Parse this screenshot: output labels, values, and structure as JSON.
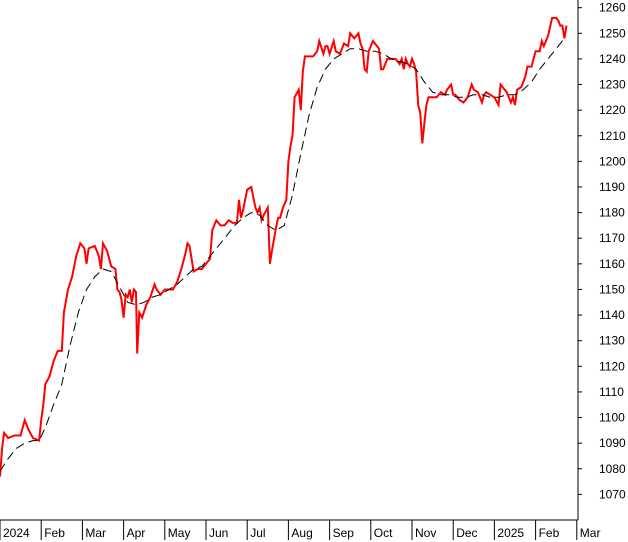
{
  "chart_data": {
    "type": "line",
    "title": "",
    "xlabel": "",
    "ylabel": "",
    "ylim": [
      1060,
      1263
    ],
    "grid": false,
    "legend": "none",
    "x_ticks": [
      {
        "label": "2024",
        "x": 0
      },
      {
        "label": "Feb",
        "x": 1.0
      },
      {
        "label": "Mar",
        "x": 2.0
      },
      {
        "label": "Apr",
        "x": 3.0
      },
      {
        "label": "May",
        "x": 4.0
      },
      {
        "label": "Jun",
        "x": 5.0
      },
      {
        "label": "Jul",
        "x": 6.0
      },
      {
        "label": "Aug",
        "x": 7.0
      },
      {
        "label": "Sep",
        "x": 8.0
      },
      {
        "label": "Oct",
        "x": 9.0
      },
      {
        "label": "Nov",
        "x": 10.0
      },
      {
        "label": "Dec",
        "x": 11.0
      },
      {
        "label": "2025",
        "x": 12.0
      },
      {
        "label": "Feb",
        "x": 13.0
      },
      {
        "label": "Mar",
        "x": 14.0
      }
    ],
    "y_ticks": [
      1070,
      1080,
      1090,
      1100,
      1110,
      1120,
      1130,
      1140,
      1150,
      1160,
      1170,
      1180,
      1190,
      1200,
      1210,
      1220,
      1230,
      1240,
      1250,
      1260
    ],
    "series": [
      {
        "style": "solid",
        "color": "#ff0000",
        "points": [
          [
            0.0,
            1077
          ],
          [
            0.05,
            1088
          ],
          [
            0.1,
            1094
          ],
          [
            0.2,
            1092
          ],
          [
            0.35,
            1093
          ],
          [
            0.5,
            1093
          ],
          [
            0.6,
            1099
          ],
          [
            0.7,
            1095
          ],
          [
            0.8,
            1092
          ],
          [
            0.95,
            1091
          ],
          [
            1.0,
            1099
          ],
          [
            1.05,
            1105
          ],
          [
            1.1,
            1113
          ],
          [
            1.2,
            1116
          ],
          [
            1.3,
            1122
          ],
          [
            1.4,
            1126
          ],
          [
            1.5,
            1126
          ],
          [
            1.55,
            1141
          ],
          [
            1.65,
            1150
          ],
          [
            1.75,
            1155
          ],
          [
            1.85,
            1163
          ],
          [
            1.95,
            1168
          ],
          [
            2.05,
            1166
          ],
          [
            2.1,
            1160
          ],
          [
            2.15,
            1166
          ],
          [
            2.3,
            1167
          ],
          [
            2.4,
            1163
          ],
          [
            2.45,
            1158
          ],
          [
            2.5,
            1168
          ],
          [
            2.6,
            1165
          ],
          [
            2.7,
            1159
          ],
          [
            2.8,
            1158
          ],
          [
            2.85,
            1150
          ],
          [
            2.9,
            1149
          ],
          [
            2.95,
            1146
          ],
          [
            3.0,
            1139
          ],
          [
            3.05,
            1148
          ],
          [
            3.1,
            1147
          ],
          [
            3.15,
            1150
          ],
          [
            3.2,
            1145
          ],
          [
            3.25,
            1150
          ],
          [
            3.3,
            1149
          ],
          [
            3.33,
            1125
          ],
          [
            3.38,
            1141
          ],
          [
            3.45,
            1139
          ],
          [
            3.55,
            1144
          ],
          [
            3.65,
            1147
          ],
          [
            3.75,
            1152
          ],
          [
            3.8,
            1150
          ],
          [
            3.9,
            1148
          ],
          [
            4.0,
            1150
          ],
          [
            4.1,
            1150
          ],
          [
            4.2,
            1150
          ],
          [
            4.3,
            1153
          ],
          [
            4.4,
            1158
          ],
          [
            4.5,
            1164
          ],
          [
            4.55,
            1168
          ],
          [
            4.6,
            1167
          ],
          [
            4.65,
            1162
          ],
          [
            4.7,
            1157
          ],
          [
            4.8,
            1158
          ],
          [
            4.9,
            1158
          ],
          [
            5.0,
            1160
          ],
          [
            5.1,
            1162
          ],
          [
            5.15,
            1173
          ],
          [
            5.25,
            1177
          ],
          [
            5.35,
            1175
          ],
          [
            5.45,
            1175
          ],
          [
            5.55,
            1177
          ],
          [
            5.65,
            1176
          ],
          [
            5.75,
            1176
          ],
          [
            5.8,
            1185
          ],
          [
            5.85,
            1178
          ],
          [
            5.9,
            1181
          ],
          [
            6.0,
            1189
          ],
          [
            6.1,
            1190
          ],
          [
            6.2,
            1182
          ],
          [
            6.25,
            1180
          ],
          [
            6.3,
            1182
          ],
          [
            6.35,
            1177
          ],
          [
            6.4,
            1179
          ],
          [
            6.5,
            1182
          ],
          [
            6.55,
            1160
          ],
          [
            6.6,
            1165
          ],
          [
            6.7,
            1174
          ],
          [
            6.75,
            1178
          ],
          [
            6.8,
            1178
          ],
          [
            6.87,
            1182
          ],
          [
            6.95,
            1185
          ],
          [
            7.0,
            1200
          ],
          [
            7.05,
            1206
          ],
          [
            7.1,
            1210
          ],
          [
            7.15,
            1225
          ],
          [
            7.25,
            1228
          ],
          [
            7.3,
            1220
          ],
          [
            7.35,
            1235
          ],
          [
            7.4,
            1241
          ],
          [
            7.5,
            1241
          ],
          [
            7.6,
            1241
          ],
          [
            7.7,
            1243
          ],
          [
            7.75,
            1247
          ],
          [
            7.85,
            1242
          ],
          [
            7.9,
            1245
          ],
          [
            7.95,
            1245
          ],
          [
            8.0,
            1242
          ],
          [
            8.1,
            1247
          ],
          [
            8.15,
            1243
          ],
          [
            8.25,
            1242
          ],
          [
            8.35,
            1246
          ],
          [
            8.45,
            1245
          ],
          [
            8.5,
            1250
          ],
          [
            8.6,
            1248
          ],
          [
            8.7,
            1250
          ],
          [
            8.75,
            1246
          ],
          [
            8.8,
            1244
          ],
          [
            8.85,
            1236
          ],
          [
            8.9,
            1235
          ],
          [
            8.95,
            1243
          ],
          [
            9.0,
            1245
          ],
          [
            9.05,
            1247
          ],
          [
            9.1,
            1246
          ],
          [
            9.15,
            1245
          ],
          [
            9.2,
            1244
          ],
          [
            9.25,
            1236
          ],
          [
            9.3,
            1236
          ],
          [
            9.4,
            1240
          ],
          [
            9.5,
            1240
          ],
          [
            9.6,
            1240
          ],
          [
            9.7,
            1238
          ],
          [
            9.75,
            1240
          ],
          [
            9.8,
            1236
          ],
          [
            9.85,
            1240
          ],
          [
            9.9,
            1238
          ],
          [
            9.95,
            1237
          ],
          [
            10.0,
            1240
          ],
          [
            10.05,
            1238
          ],
          [
            10.1,
            1235
          ],
          [
            10.15,
            1222
          ],
          [
            10.2,
            1219
          ],
          [
            10.25,
            1207
          ],
          [
            10.3,
            1215
          ],
          [
            10.35,
            1222
          ],
          [
            10.4,
            1225
          ],
          [
            10.5,
            1225
          ],
          [
            10.6,
            1225
          ],
          [
            10.7,
            1227
          ],
          [
            10.8,
            1226
          ],
          [
            10.85,
            1228
          ],
          [
            10.95,
            1230
          ],
          [
            11.0,
            1226
          ],
          [
            11.05,
            1226
          ],
          [
            11.15,
            1224
          ],
          [
            11.25,
            1223
          ],
          [
            11.35,
            1225
          ],
          [
            11.45,
            1230
          ],
          [
            11.5,
            1228
          ],
          [
            11.6,
            1227
          ],
          [
            11.7,
            1223
          ],
          [
            11.75,
            1226
          ],
          [
            11.8,
            1227
          ],
          [
            11.9,
            1226
          ],
          [
            12.0,
            1225
          ],
          [
            12.1,
            1222
          ],
          [
            12.15,
            1230
          ],
          [
            12.2,
            1229
          ],
          [
            12.3,
            1227
          ],
          [
            12.4,
            1223
          ],
          [
            12.45,
            1225
          ],
          [
            12.5,
            1222
          ],
          [
            12.55,
            1228
          ],
          [
            12.65,
            1229
          ],
          [
            12.75,
            1233
          ],
          [
            12.8,
            1237
          ],
          [
            12.9,
            1237
          ],
          [
            12.95,
            1240
          ],
          [
            13.0,
            1243
          ],
          [
            13.1,
            1243
          ],
          [
            13.15,
            1247
          ],
          [
            13.2,
            1245
          ],
          [
            13.3,
            1249
          ],
          [
            13.4,
            1256
          ],
          [
            13.5,
            1256
          ],
          [
            13.55,
            1255
          ],
          [
            13.6,
            1253
          ],
          [
            13.65,
            1253
          ],
          [
            13.7,
            1248
          ],
          [
            13.75,
            1253
          ]
        ]
      },
      {
        "style": "dashed",
        "color": "#000000",
        "points": [
          [
            0.0,
            1079
          ],
          [
            0.2,
            1084
          ],
          [
            0.4,
            1088
          ],
          [
            0.6,
            1090
          ],
          [
            0.8,
            1091
          ],
          [
            0.95,
            1091
          ],
          [
            1.1,
            1096
          ],
          [
            1.3,
            1105
          ],
          [
            1.5,
            1113
          ],
          [
            1.7,
            1128
          ],
          [
            1.9,
            1141
          ],
          [
            2.1,
            1150
          ],
          [
            2.3,
            1155
          ],
          [
            2.5,
            1158
          ],
          [
            2.7,
            1157
          ],
          [
            2.9,
            1151
          ],
          [
            3.1,
            1145
          ],
          [
            3.3,
            1144
          ],
          [
            3.5,
            1145
          ],
          [
            3.7,
            1147
          ],
          [
            3.9,
            1148
          ],
          [
            4.1,
            1150
          ],
          [
            4.3,
            1152
          ],
          [
            4.5,
            1155
          ],
          [
            4.7,
            1158
          ],
          [
            4.9,
            1159
          ],
          [
            5.1,
            1163
          ],
          [
            5.3,
            1167
          ],
          [
            5.5,
            1171
          ],
          [
            5.7,
            1175
          ],
          [
            5.9,
            1178
          ],
          [
            6.1,
            1180
          ],
          [
            6.3,
            1179
          ],
          [
            6.5,
            1175
          ],
          [
            6.7,
            1173
          ],
          [
            6.9,
            1175
          ],
          [
            7.1,
            1187
          ],
          [
            7.3,
            1203
          ],
          [
            7.5,
            1218
          ],
          [
            7.7,
            1229
          ],
          [
            7.9,
            1236
          ],
          [
            8.1,
            1240
          ],
          [
            8.3,
            1242
          ],
          [
            8.5,
            1244
          ],
          [
            8.7,
            1244
          ],
          [
            8.9,
            1243
          ],
          [
            9.1,
            1243
          ],
          [
            9.3,
            1242
          ],
          [
            9.5,
            1240
          ],
          [
            9.7,
            1239
          ],
          [
            9.9,
            1238
          ],
          [
            10.1,
            1236
          ],
          [
            10.3,
            1231
          ],
          [
            10.5,
            1227
          ],
          [
            10.7,
            1226
          ],
          [
            10.9,
            1226
          ],
          [
            11.1,
            1225
          ],
          [
            11.3,
            1225
          ],
          [
            11.5,
            1226
          ],
          [
            11.7,
            1226
          ],
          [
            11.9,
            1225
          ],
          [
            12.1,
            1225
          ],
          [
            12.3,
            1226
          ],
          [
            12.5,
            1226
          ],
          [
            12.7,
            1228
          ],
          [
            12.9,
            1231
          ],
          [
            13.1,
            1236
          ],
          [
            13.3,
            1240
          ],
          [
            13.5,
            1244
          ],
          [
            13.7,
            1248
          ]
        ]
      }
    ]
  }
}
